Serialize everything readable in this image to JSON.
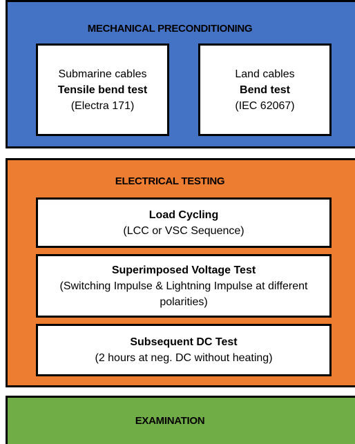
{
  "sections": [
    {
      "title": "MECHANICAL PRECONDITIONING",
      "boxes": [
        {
          "category": "Submarine cables",
          "name": "Tensile bend test",
          "detail": "(Electra 171)"
        },
        {
          "category": "Land cables",
          "name": "Bend test",
          "detail": "(IEC 62067)"
        }
      ]
    },
    {
      "title": "ELECTRICAL TESTING",
      "boxes": [
        {
          "name": "Load Cycling",
          "detail": "(LCC or VSC Sequence)"
        },
        {
          "name": "Superimposed Voltage Test",
          "detail": "(Switching Impulse & Lightning Impulse at different polarities)"
        },
        {
          "name": "Subsequent DC Test",
          "detail": "(2 hours at neg. DC without heating)"
        }
      ]
    },
    {
      "title": "EXAMINATION"
    }
  ]
}
